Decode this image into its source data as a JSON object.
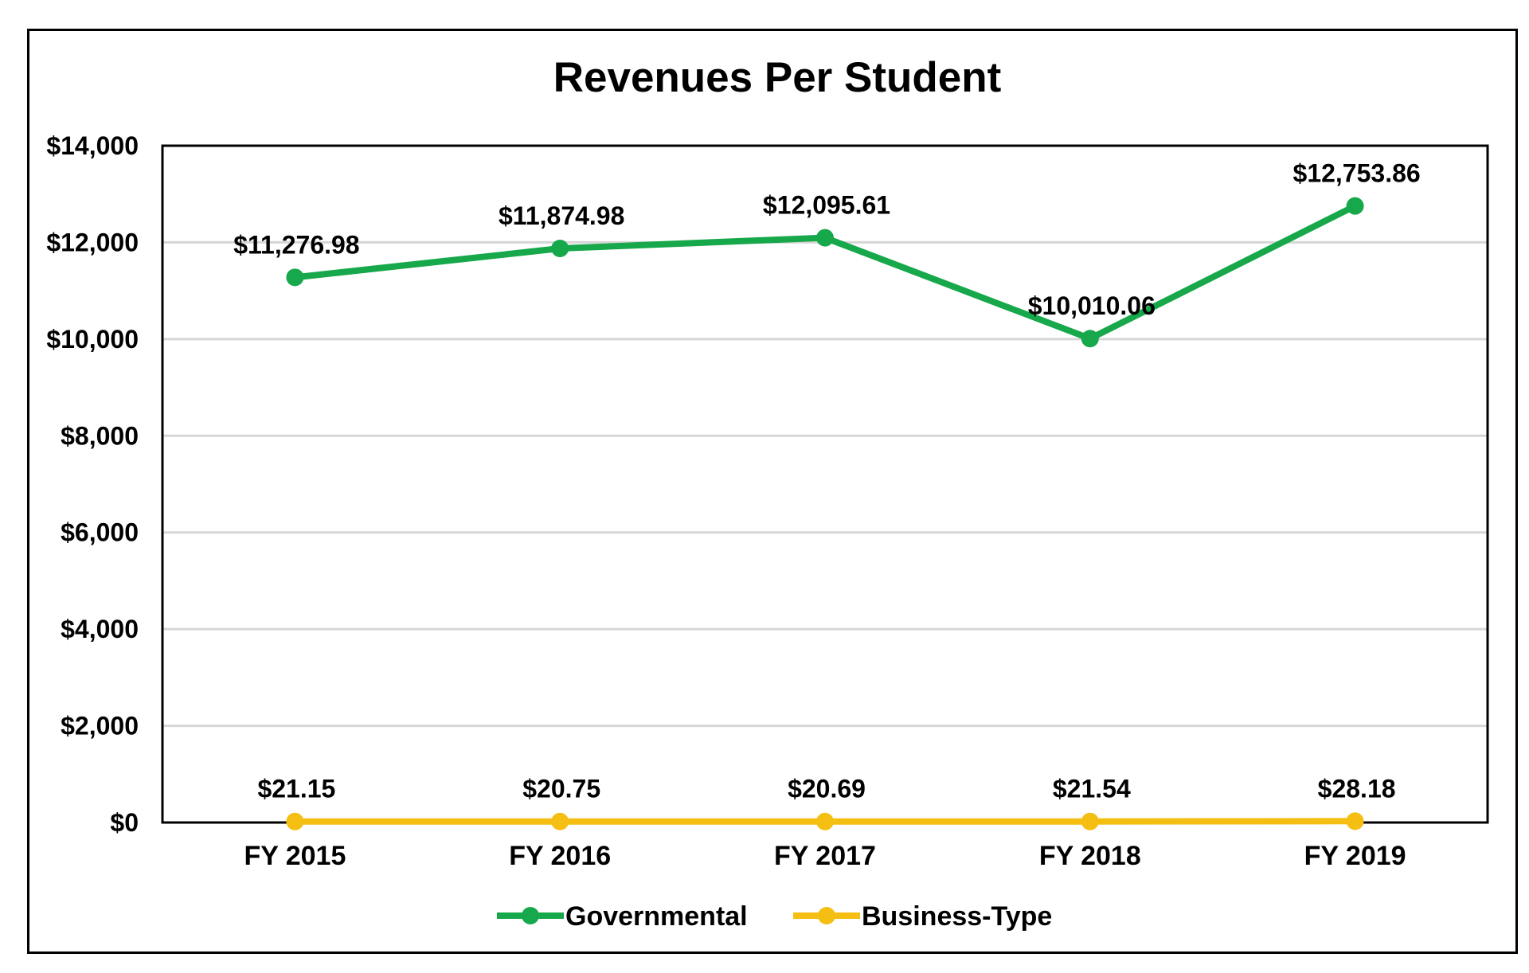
{
  "chart_data": {
    "type": "line",
    "title": "Revenues Per Student",
    "xlabel": "",
    "ylabel": "",
    "categories": [
      "FY 2015",
      "FY 2016",
      "FY 2017",
      "FY 2018",
      "FY 2019"
    ],
    "ylim": [
      0,
      14000
    ],
    "yticks": [
      0,
      2000,
      4000,
      6000,
      8000,
      10000,
      12000,
      14000
    ],
    "ytick_labels": [
      "$0",
      "$2,000",
      "$4,000",
      "$6,000",
      "$8,000",
      "$10,000",
      "$12,000",
      "$14,000"
    ],
    "grid": true,
    "legend_position": "bottom",
    "series": [
      {
        "name": "Governmental",
        "color": "#16A84A",
        "values": [
          11276.98,
          11874.98,
          12095.61,
          10010.06,
          12753.86
        ],
        "labels": [
          "$11,276.98",
          "$11,874.98",
          "$12,095.61",
          "$10,010.06",
          "$12,753.86"
        ]
      },
      {
        "name": "Business-Type",
        "color": "#F5BE12",
        "values": [
          21.15,
          20.75,
          20.69,
          21.54,
          28.18
        ],
        "labels": [
          "$21.15",
          "$20.75",
          "$20.69",
          "$21.54",
          "$28.18"
        ]
      }
    ]
  }
}
